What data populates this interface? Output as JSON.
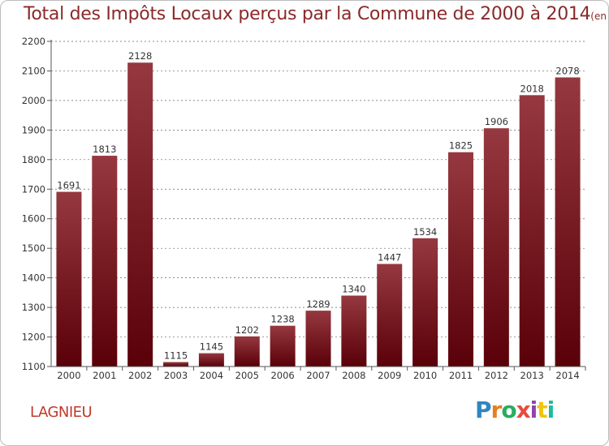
{
  "title": "Total des Impôts Locaux perçus par la Commune de 2000 à 2014",
  "title_unit": "(en milliers d'€)",
  "commune": "LAGNIEU",
  "brand": {
    "letters": [
      "P",
      "r",
      "o",
      "x",
      "i",
      "t",
      "i"
    ],
    "colors": [
      "#2e86c1",
      "#e67e22",
      "#27ae60",
      "#e74c3c",
      "#8e44ad",
      "#f1c40f",
      "#1abc9c"
    ]
  },
  "colors": {
    "bar_top": "#963840",
    "bar_bottom": "#5a0008",
    "title": "#8a2a2a",
    "commune": "#c0392b",
    "grid": "#666666"
  },
  "chart_data": {
    "type": "bar",
    "categories": [
      "2000",
      "2001",
      "2002",
      "2003",
      "2004",
      "2005",
      "2006",
      "2007",
      "2008",
      "2009",
      "2010",
      "2011",
      "2012",
      "2013",
      "2014"
    ],
    "values": [
      1691,
      1813,
      2128,
      1115,
      1145,
      1202,
      1238,
      1289,
      1340,
      1447,
      1534,
      1825,
      1906,
      2018,
      2078
    ],
    "data_labels": [
      "1691",
      "1813",
      "2128",
      "1115",
      "1145",
      "1202",
      "1238",
      "1289",
      "1340",
      "1447",
      "1534",
      "1825",
      "1906",
      "2018",
      "2078"
    ],
    "ylim": [
      1100,
      2200
    ],
    "yticks": [
      1100,
      1200,
      1300,
      1400,
      1500,
      1600,
      1700,
      1800,
      1900,
      2000,
      2100,
      2200
    ],
    "ytick_labels": [
      "1100",
      "1200",
      "1300",
      "1400",
      "1500",
      "1600",
      "1700",
      "1800",
      "1900",
      "2000",
      "2100",
      "2200"
    ],
    "grid": true
  }
}
